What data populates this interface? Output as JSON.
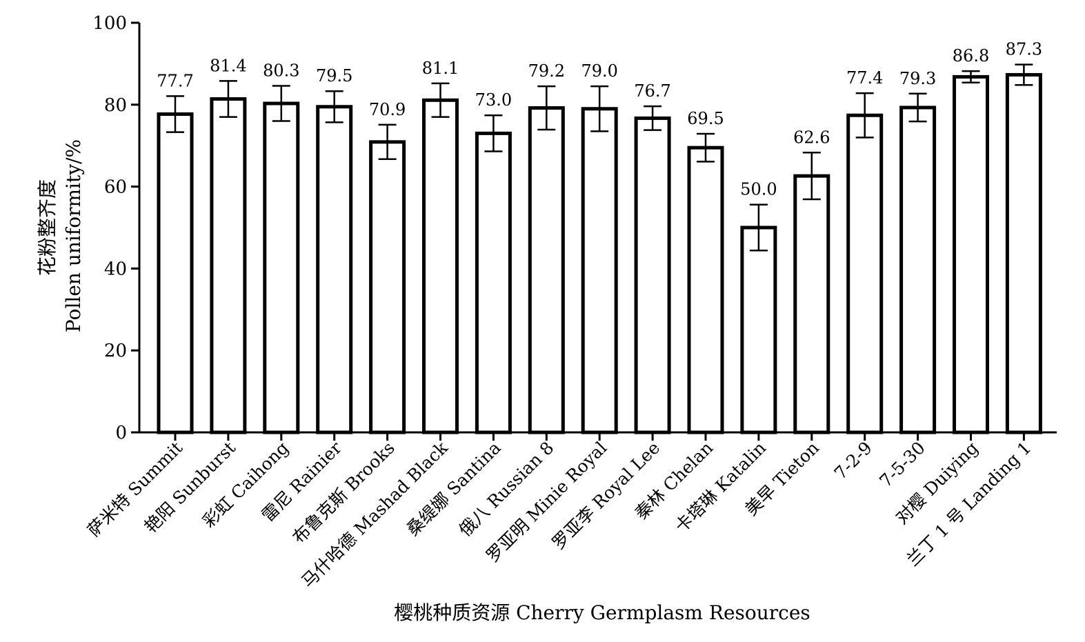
{
  "chart_data": {
    "type": "bar",
    "title": "",
    "xlabel": "樱桃种质资源 Cherry Germplasm Resources",
    "ylabel_line1": "花粉整齐度",
    "ylabel_line2": "Pollen uniformity/%",
    "ylim": [
      0,
      100
    ],
    "yticks": [
      "0",
      "20",
      "40",
      "60",
      "80",
      "100"
    ],
    "grid": false,
    "legend": "none",
    "bar_fill": "#ffffff",
    "bar_stroke": "#000000",
    "categories": [
      "萨米特 Summit",
      "艳阳 Sunburst",
      "彩虹 Caihong",
      "雷尼 Rainier",
      "布鲁克斯 Brooks",
      "马什哈德 Mashad Black",
      "桑缇娜 Santina",
      "俄八 Russian 8",
      "罗亚明 Minie Royal",
      "罗亚李 Royal Lee",
      "秦林 Chelan",
      "卡塔琳 Katalin",
      "美早 Tieton",
      "7-2-9",
      "7-5-30",
      "对樱 Duiying",
      "兰丁 1 号 Landing 1"
    ],
    "values": [
      77.7,
      81.4,
      80.3,
      79.5,
      70.9,
      81.1,
      73.0,
      79.2,
      79.0,
      76.7,
      69.5,
      50.0,
      62.6,
      77.4,
      79.3,
      86.8,
      87.3
    ],
    "value_labels": [
      "77.7",
      "81.4",
      "80.3",
      "79.5",
      "70.9",
      "81.1",
      "73.0",
      "79.2",
      "79.0",
      "76.7",
      "69.5",
      "50.0",
      "62.6",
      "77.4",
      "79.3",
      "86.8",
      "87.3"
    ],
    "errors": [
      4.4,
      4.4,
      4.3,
      3.8,
      4.2,
      4.1,
      4.4,
      5.3,
      5.5,
      2.9,
      3.4,
      5.6,
      5.7,
      5.4,
      3.4,
      1.4,
      2.5
    ]
  }
}
